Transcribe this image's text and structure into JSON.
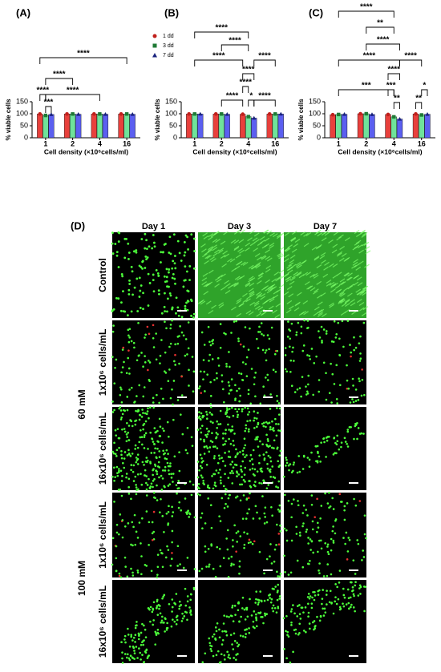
{
  "chart_data": [
    {
      "type": "bar",
      "panel_label": "(A)",
      "x_label": "Cell density (×10⁶cells/ml)",
      "y_label": "% viable cells",
      "categories": [
        "1",
        "2",
        "4",
        "16"
      ],
      "ylim": [
        0,
        150
      ],
      "yticks": [
        0,
        50,
        100,
        150
      ],
      "series": [
        {
          "color": "#e8403c",
          "values": [
            99,
            99,
            99,
            99
          ]
        },
        {
          "color": "#6fe39a",
          "values": [
            93,
            99,
            99,
            99
          ]
        },
        {
          "color": "#5b5ff0",
          "values": [
            97,
            98,
            98,
            98
          ]
        }
      ],
      "annotations": [
        "****",
        "****",
        "****",
        "****",
        "***"
      ]
    },
    {
      "type": "bar",
      "panel_label": "(B)",
      "x_label": "Cell density (×10⁶cells/ml)",
      "y_label": "% viable cells",
      "categories": [
        "1",
        "2",
        "4",
        "16"
      ],
      "ylim": [
        0,
        150
      ],
      "yticks": [
        0,
        50,
        100,
        150
      ],
      "series": [
        {
          "name": "1 dd",
          "color": "#e8403c",
          "values": [
            99,
            99,
            98,
            99
          ]
        },
        {
          "name": "3 dd",
          "color": "#6fe39a",
          "values": [
            99,
            99,
            88,
            99
          ]
        },
        {
          "name": "7 dd",
          "color": "#5b5ff0",
          "values": [
            99,
            98,
            82,
            99
          ]
        }
      ],
      "annotations": [
        "****",
        "****",
        "****",
        "****",
        "****",
        "****",
        "****",
        "*",
        "****"
      ]
    },
    {
      "type": "bar",
      "panel_label": "(C)",
      "x_label": "Cell density (×10⁶cells/ml)",
      "y_label": "% viable cells",
      "categories": [
        "1",
        "2",
        "4",
        "16"
      ],
      "ylim": [
        0,
        150
      ],
      "yticks": [
        0,
        50,
        100,
        150
      ],
      "series": [
        {
          "color": "#e8403c",
          "values": [
            96,
            100,
            97,
            99
          ]
        },
        {
          "color": "#6fe39a",
          "values": [
            97,
            100,
            87,
            95
          ]
        },
        {
          "color": "#5b5ff0",
          "values": [
            98,
            97,
            78,
            98
          ]
        }
      ],
      "annotations": [
        "****",
        "**",
        "****",
        "****",
        "****",
        "****",
        "***",
        "***",
        "**",
        "**",
        "*"
      ]
    }
  ],
  "panel_d": {
    "label": "(D)",
    "columns": [
      "Day 1",
      "Day 3",
      "Day 7"
    ],
    "rows": [
      "Control",
      "1x10⁶ cells/mL",
      "16x10⁶ cells/mL",
      "1x10⁶ cells/mL",
      "16x10⁶ cells/mL"
    ],
    "groups": [
      "60 mM",
      "100 mM"
    ]
  }
}
